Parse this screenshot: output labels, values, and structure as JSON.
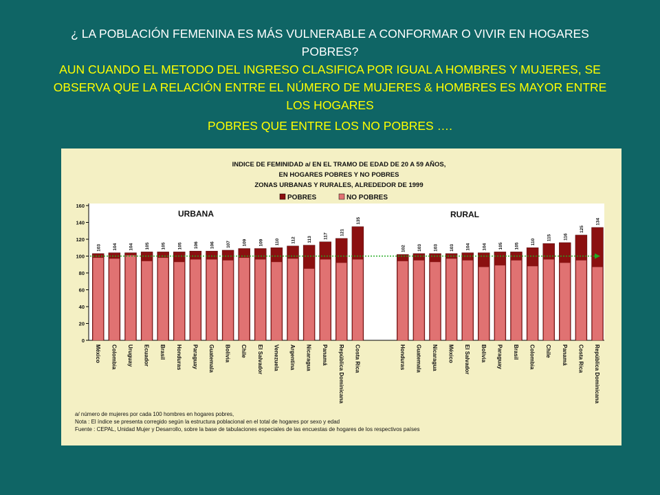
{
  "slide": {
    "question": "¿ LA POBLACIÓN FEMENINA ES MÁS VULNERABLE A CONFORMAR O VIVIR EN HOGARES POBRES?",
    "answer_1": "AUN CUANDO EL METODO DEL INGRESO CLASIFICA POR IGUAL A HOMBRES Y MUJERES, SE OBSERVA  QUE LA RELACIÓN ENTRE EL NÚMERO DE  MUJERES & HOMBRES  ES MAYOR ENTRE LOS HOGARES",
    "answer_2": "POBRES QUE ENTRE LOS NO POBRES …."
  },
  "colors": {
    "background": "#0f6565",
    "question": "#ffffff",
    "answer": "#ffff00",
    "chart_bg": "#f4f0c4",
    "pobres": "#8b1010",
    "no_pobres": "#e07272",
    "reference_line": "#22aa22"
  },
  "chart_data": {
    "type": "bar",
    "title_lines": [
      "INDICE DE FEMINIDAD a/ EN EL TRAMO DE EDAD DE 20 A 59 AÑOS,",
      "EN HOGARES POBRES Y NO POBRES",
      "ZONAS URBANAS Y RURALES,  ALREDEDOR DE 1999"
    ],
    "legend": [
      "POBRES",
      "NO POBRES"
    ],
    "ylim": [
      0,
      160
    ],
    "yticks": [
      0,
      20,
      40,
      60,
      80,
      100,
      120,
      140,
      160
    ],
    "reference_value": 100,
    "groups": [
      {
        "label": "URBANA",
        "categories": [
          "México",
          "Colombia",
          "Uruguay",
          "Ecuador",
          "Brasil",
          "Honduras",
          "Paraguay",
          "Guatemala",
          "Bolivia",
          "Chile",
          "El Salvador",
          "Venezuela",
          "Argentina",
          "Nicaragua",
          "Panamá",
          "República Dominicana",
          "Costa Rica"
        ],
        "series": [
          {
            "name": "POBRES",
            "values": [
              103,
              104,
              104,
              105,
              105,
              105,
              106,
              106,
              107,
              109,
              109,
              110,
              112,
              113,
              117,
              121,
              135
            ]
          },
          {
            "name": "NO POBRES",
            "values": [
              98,
              97,
              101,
              94,
              98,
              93,
              96,
              96,
              95,
              98,
              96,
              93,
              97,
              85,
              96,
              92,
              96
            ]
          }
        ]
      },
      {
        "label": "RURAL",
        "categories": [
          "Honduras",
          "Guatemala",
          "Nicaragua",
          "México",
          "El Salvador",
          "Bolivia",
          "Paraguay",
          "Brasil",
          "Colombia",
          "Chile",
          "Panamá",
          "Costa Rica",
          "República Dominicana"
        ],
        "series": [
          {
            "name": "POBRES",
            "values": [
              102,
              103,
              103,
              103,
              104,
              104,
              105,
              105,
              110,
              115,
              116,
              125,
              134
            ]
          },
          {
            "name": "NO POBRES",
            "values": [
              94,
              95,
              93,
              97,
              95,
              87,
              89,
              95,
              88,
              96,
              92,
              95,
              87
            ]
          }
        ]
      }
    ],
    "notes": [
      "a/ número de mujeres por cada 100 hombres en hogares pobres,",
      "Nota : El índice se presenta  corregido según la estructura poblacional en el total de hogares por sexo y edad",
      "Fuente : CEPAL, Unidad Mujer y Desarrollo, sobre la base de tabulaciones especiales de las encuestas de hogares de los respectivos países"
    ]
  }
}
